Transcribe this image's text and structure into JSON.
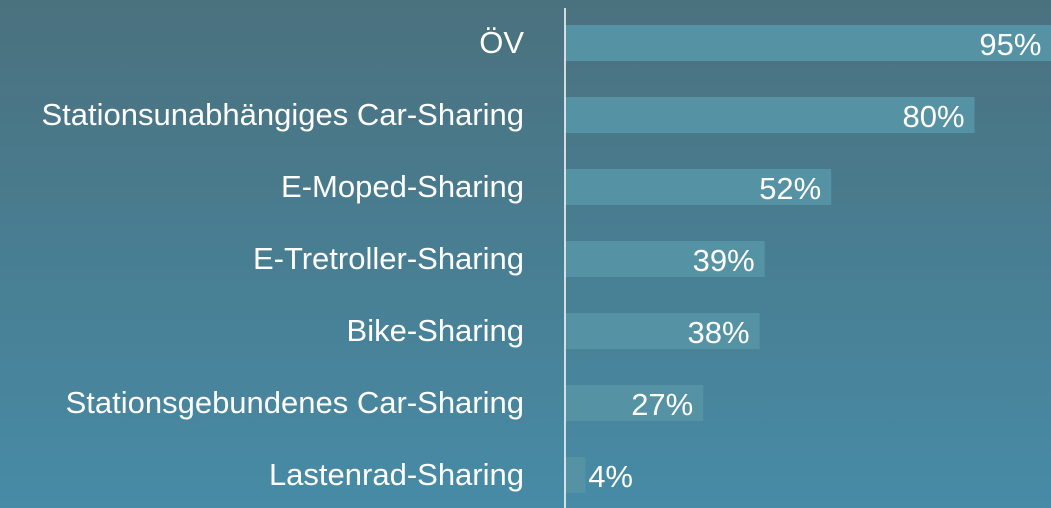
{
  "chart_data": {
    "type": "bar",
    "orientation": "horizontal",
    "categories": [
      "ÖV",
      "Stationsunabhängiges Car-Sharing",
      "E-Moped-Sharing",
      "E-Tretroller-Sharing",
      "Bike-Sharing",
      "Stationsgebundenes Car-Sharing",
      "Lastenrad-Sharing"
    ],
    "values": [
      95,
      80,
      52,
      39,
      38,
      27,
      4
    ],
    "value_labels": [
      "95%",
      "80%",
      "52%",
      "39%",
      "38%",
      "27%",
      "4%"
    ],
    "color": "#5592a3",
    "xlim": [
      0,
      100
    ]
  }
}
